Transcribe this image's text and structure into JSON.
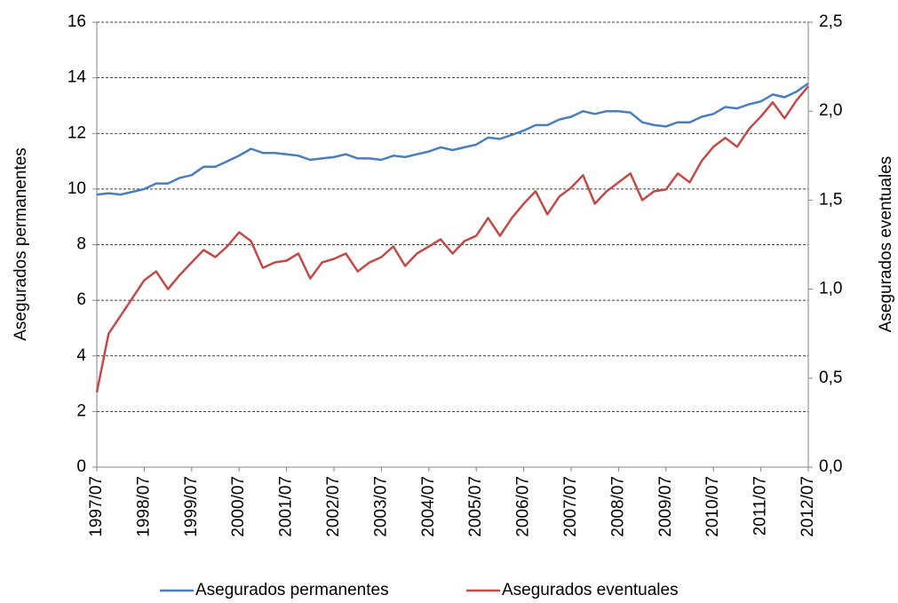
{
  "chart_data": {
    "type": "line",
    "categories": [
      "1997/07",
      null,
      null,
      null,
      "1998/07",
      null,
      null,
      null,
      "1999/07",
      null,
      null,
      null,
      "2000/07",
      null,
      null,
      null,
      "2001/07",
      null,
      null,
      null,
      "2002/07",
      null,
      null,
      null,
      "2003/07",
      null,
      null,
      null,
      "2004/07",
      null,
      null,
      null,
      "2005/07",
      null,
      null,
      null,
      "2006/07",
      null,
      null,
      null,
      "2007/07",
      null,
      null,
      null,
      "2008/07",
      null,
      null,
      null,
      "2009/07",
      null,
      null,
      null,
      "2010/07",
      null,
      null,
      null,
      "2011/07",
      null,
      null,
      null,
      "2012/07"
    ],
    "series": [
      {
        "name": "Asegurados permanentes",
        "color": "#4a7ebb",
        "axis": "y",
        "values": [
          9.8,
          9.85,
          9.8,
          9.9,
          10.0,
          10.2,
          10.2,
          10.4,
          10.5,
          10.8,
          10.8,
          11.0,
          11.2,
          11.45,
          11.3,
          11.3,
          11.25,
          11.2,
          11.05,
          11.1,
          11.15,
          11.25,
          11.1,
          11.1,
          11.05,
          11.2,
          11.15,
          11.25,
          11.35,
          11.5,
          11.4,
          11.5,
          11.6,
          11.85,
          11.8,
          11.95,
          12.1,
          12.3,
          12.3,
          12.5,
          12.6,
          12.8,
          12.7,
          12.8,
          12.8,
          12.75,
          12.4,
          12.3,
          12.25,
          12.4,
          12.4,
          12.6,
          12.7,
          12.95,
          12.9,
          13.05,
          13.15,
          13.4,
          13.3,
          13.5,
          13.8
        ]
      },
      {
        "name": "Asegurados eventuales",
        "color": "#be4b48",
        "axis": "y2",
        "values": [
          0.42,
          0.75,
          0.85,
          0.95,
          1.05,
          1.1,
          1.0,
          1.08,
          1.15,
          1.22,
          1.18,
          1.24,
          1.32,
          1.27,
          1.12,
          1.15,
          1.16,
          1.2,
          1.06,
          1.15,
          1.17,
          1.2,
          1.1,
          1.15,
          1.18,
          1.24,
          1.13,
          1.2,
          1.24,
          1.28,
          1.2,
          1.27,
          1.3,
          1.4,
          1.3,
          1.4,
          1.48,
          1.55,
          1.42,
          1.52,
          1.57,
          1.64,
          1.48,
          1.55,
          1.6,
          1.65,
          1.5,
          1.55,
          1.56,
          1.65,
          1.6,
          1.72,
          1.8,
          1.85,
          1.8,
          1.9,
          1.97,
          2.05,
          1.96,
          2.06,
          2.14
        ]
      }
    ],
    "y_label": "Asegurados permanentes",
    "y2_label": "Asegurados eventuales",
    "ylim": [
      0,
      16
    ],
    "yticks": [
      0,
      2,
      4,
      6,
      8,
      10,
      12,
      14,
      16
    ],
    "y2lim": [
      0,
      2.5
    ],
    "y2ticks": [
      {
        "value": 0,
        "label": "0,0"
      },
      {
        "value": 0.5,
        "label": "0,5"
      },
      {
        "value": 1.0,
        "label": "1,0"
      },
      {
        "value": 1.5,
        "label": "1,5"
      },
      {
        "value": 2.0,
        "label": "2,0"
      },
      {
        "value": 2.5,
        "label": "2,5"
      }
    ],
    "grid": true,
    "legend": "bottom"
  }
}
